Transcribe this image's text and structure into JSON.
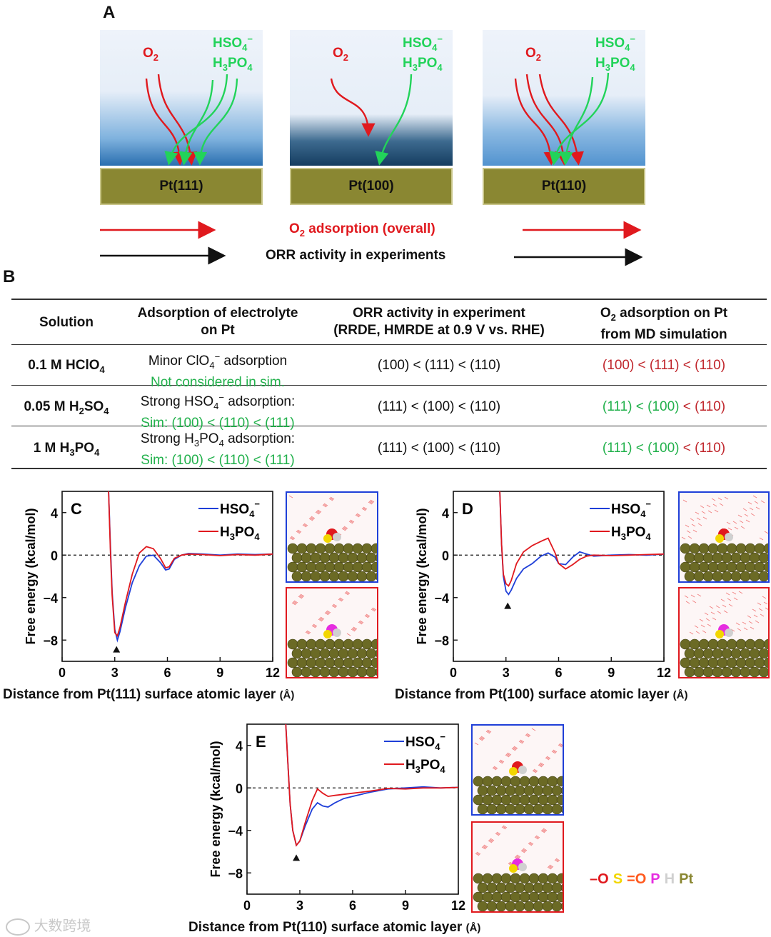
{
  "panelA": {
    "letter": "A",
    "boxes": [
      {
        "surface": "Pt(111)",
        "o2": "O",
        "o2_sub": "2",
        "hso4": "HSO",
        "hso4_sub": "4",
        "hso4_sup": "−",
        "h3po4_a": "H",
        "h3po4_sub1": "3",
        "h3po4_b": "PO",
        "h3po4_sub2": "4"
      },
      {
        "surface": "Pt(100)",
        "o2": "O",
        "o2_sub": "2",
        "hso4": "HSO",
        "hso4_sub": "4",
        "hso4_sup": "−",
        "h3po4_a": "H",
        "h3po4_sub1": "3",
        "h3po4_b": "PO",
        "h3po4_sub2": "4"
      },
      {
        "surface": "Pt(110)",
        "o2": "O",
        "o2_sub": "2",
        "hso4": "HSO",
        "hso4_sub": "4",
        "hso4_sup": "−",
        "h3po4_a": "H",
        "h3po4_sub1": "3",
        "h3po4_b": "PO",
        "h3po4_sub2": "4"
      }
    ],
    "o2_adsorption_label_a": "O",
    "o2_adsorption_label_sub": "2",
    "o2_adsorption_label_b": " adsorption (overall)",
    "orr_label": "ORR activity in experiments",
    "colors": {
      "o2": "#e0191e",
      "electrolyte": "#22d35a",
      "pt": "#8a8732"
    }
  },
  "panelB": {
    "letter": "B",
    "headers": {
      "solution": "Solution",
      "adsorption_l1": "Adsorption of electrolyte",
      "adsorption_l2": "on Pt",
      "orr_l1": "ORR activity in experiment",
      "orr_l2": "(RRDE, HMRDE at 0.9 V vs. RHE)",
      "o2_l1a": "O",
      "o2_l1sub": "2",
      "o2_l1b": " adsorption on Pt",
      "o2_l2": "from MD simulation"
    },
    "rows": [
      {
        "sol_a": "0.1 M HClO",
        "sol_sub": "4",
        "sol_b": "",
        "ads_l1a": "Minor ClO",
        "ads_l1sub": "4",
        "ads_l1sup": "−",
        "ads_l1b": " adsorption",
        "ads_l2": "Not considered in sim.",
        "orr": "(100) < (111) < (110)",
        "o2_a": "(100) < (111) < (110)",
        "o2_b": ""
      },
      {
        "sol_a": "0.05 M H",
        "sol_sub": "2",
        "sol_b": "SO",
        "sol_sub2": "4",
        "ads_l1a": "Strong HSO",
        "ads_l1sub": "4",
        "ads_l1sup": "−",
        "ads_l1b": " adsorption:",
        "ads_l2": "Sim: (100) < (110) < (111)",
        "orr": "(111) < (100) < (110)",
        "o2_a": "(111) < (100)",
        "o2_b": " < (110)"
      },
      {
        "sol_a": "1 M H",
        "sol_sub": "3",
        "sol_b": "PO",
        "sol_sub2": "4",
        "ads_l1a": "Strong H",
        "ads_l1sub": "3",
        "ads_l1sup": "",
        "ads_l1b": "PO",
        "ads_l1sub2": "4",
        "ads_l1c": " adsorption:",
        "ads_l2": "Sim: (100) < (110) < (111)",
        "orr": "(111) < (100) < (110)",
        "o2_a": "(111) < (100)",
        "o2_b": " < (110)"
      }
    ]
  },
  "charts": {
    "ylabel": "Free energy (kcal/mol)",
    "legend_hso4": "HSO",
    "legend_hso4_sub": "4",
    "legend_hso4_sup": "−",
    "legend_h3po4_a": "H",
    "legend_h3po4_sub1": "3",
    "legend_h3po4_b": "PO",
    "legend_h3po4_sub2": "4",
    "colors": {
      "hso4": "#1f3fd8",
      "h3po4": "#e0191e"
    }
  },
  "chart_data": [
    {
      "type": "line",
      "panel": "C",
      "xlabel_a": "Distance from Pt(111) surface atomic layer ",
      "xlabel_b": "(Å)",
      "ylabel": "Free energy (kcal/mol)",
      "xlim": [
        0,
        12
      ],
      "ylim": [
        -10,
        6
      ],
      "xticks": [
        "0",
        "3",
        "6",
        "9",
        "12"
      ],
      "yticks": [
        "4",
        "0",
        "−4",
        "−8"
      ],
      "marker_x": 3.1,
      "series": [
        {
          "name": "HSO4−",
          "x": [
            2.65,
            2.75,
            2.85,
            3.0,
            3.15,
            3.3,
            3.6,
            4.0,
            4.4,
            4.8,
            5.2,
            5.6,
            5.9,
            6.1,
            6.4,
            6.8,
            7.2,
            8.0,
            9.0,
            10.0,
            11.0,
            12.0
          ],
          "y": [
            6,
            1,
            -3.5,
            -7.0,
            -8.0,
            -7.2,
            -5.0,
            -2.6,
            -1.0,
            -0.1,
            0.0,
            -0.7,
            -1.4,
            -1.3,
            -0.4,
            0.0,
            0.15,
            0.1,
            0.0,
            0.1,
            0.05,
            0.1
          ]
        },
        {
          "name": "H3PO4",
          "x": [
            2.65,
            2.75,
            2.85,
            3.0,
            3.15,
            3.3,
            3.6,
            4.0,
            4.4,
            4.8,
            5.2,
            5.6,
            5.9,
            6.1,
            6.4,
            6.8,
            7.2,
            8.0,
            9.0,
            10.0,
            11.0,
            12.0
          ],
          "y": [
            6,
            0.5,
            -3.8,
            -7.3,
            -7.6,
            -6.8,
            -4.5,
            -1.8,
            0.2,
            0.8,
            0.6,
            -0.3,
            -1.2,
            -1.1,
            -0.3,
            0.0,
            0.1,
            0.05,
            -0.05,
            0.05,
            0.0,
            0.1
          ]
        }
      ]
    },
    {
      "type": "line",
      "panel": "D",
      "xlabel_a": "Distance from Pt(100) surface atomic layer ",
      "xlabel_b": "(Å)",
      "ylabel": "Free energy (kcal/mol)",
      "xlim": [
        0,
        12
      ],
      "ylim": [
        -10,
        6
      ],
      "xticks": [
        "0",
        "3",
        "6",
        "9",
        "12"
      ],
      "yticks": [
        "4",
        "0",
        "−4",
        "−8"
      ],
      "marker_x": 3.1,
      "series": [
        {
          "name": "HSO4−",
          "x": [
            2.65,
            2.75,
            2.85,
            3.0,
            3.15,
            3.3,
            3.6,
            4.0,
            4.5,
            5.0,
            5.4,
            5.8,
            6.0,
            6.4,
            6.8,
            7.2,
            7.6,
            8.0,
            9.0,
            10.0,
            11.0,
            12.0
          ],
          "y": [
            6,
            1,
            -2.0,
            -3.4,
            -3.7,
            -3.3,
            -2.2,
            -1.3,
            -0.8,
            -0.1,
            0.2,
            -0.2,
            -0.8,
            -0.9,
            -0.2,
            0.3,
            0.1,
            -0.1,
            0.0,
            0.05,
            0.0,
            0.1
          ]
        },
        {
          "name": "H3PO4",
          "x": [
            2.65,
            2.75,
            2.85,
            3.0,
            3.15,
            3.3,
            3.6,
            4.0,
            4.5,
            5.0,
            5.4,
            5.8,
            6.0,
            6.4,
            6.8,
            7.2,
            7.6,
            8.0,
            9.0,
            10.0,
            11.0,
            12.0
          ],
          "y": [
            6,
            1,
            -1.8,
            -2.7,
            -2.9,
            -2.4,
            -0.8,
            0.3,
            0.9,
            1.3,
            1.6,
            0.2,
            -0.8,
            -1.3,
            -0.9,
            -0.4,
            -0.1,
            0.0,
            -0.05,
            0.0,
            0.05,
            0.1
          ]
        }
      ]
    },
    {
      "type": "line",
      "panel": "E",
      "xlabel_a": "Distance from Pt(110) surface atomic layer ",
      "xlabel_b": "(Å)",
      "ylabel": "Free energy (kcal/mol)",
      "xlim": [
        0,
        12
      ],
      "ylim": [
        -10,
        6
      ],
      "xticks": [
        "0",
        "3",
        "6",
        "9",
        "12"
      ],
      "yticks": [
        "4",
        "0",
        "−4",
        "−8"
      ],
      "marker_x": 2.8,
      "series": [
        {
          "name": "HSO4−",
          "x": [
            2.2,
            2.3,
            2.45,
            2.6,
            2.8,
            3.0,
            3.3,
            3.7,
            4.0,
            4.3,
            4.6,
            5.0,
            5.5,
            6.0,
            7.0,
            8.0,
            9.0,
            10.0,
            11.0,
            12.0
          ],
          "y": [
            6,
            3,
            -1.5,
            -4.0,
            -5.4,
            -5.0,
            -3.6,
            -2.0,
            -1.4,
            -1.7,
            -1.8,
            -1.4,
            -1.0,
            -0.8,
            -0.4,
            -0.1,
            0.0,
            0.1,
            0.0,
            0.05
          ]
        },
        {
          "name": "H3PO4",
          "x": [
            2.2,
            2.3,
            2.45,
            2.6,
            2.8,
            3.0,
            3.3,
            3.7,
            4.0,
            4.3,
            4.6,
            5.0,
            5.5,
            6.0,
            7.0,
            8.0,
            9.0,
            10.0,
            11.0,
            12.0
          ],
          "y": [
            6,
            3,
            -1.5,
            -4.0,
            -5.4,
            -5.0,
            -3.3,
            -1.2,
            -0.1,
            -0.5,
            -0.8,
            -0.7,
            -0.6,
            -0.5,
            -0.3,
            -0.05,
            -0.1,
            0.0,
            0.0,
            0.05
          ]
        }
      ]
    }
  ],
  "element_legend": [
    {
      "symbol": "–O",
      "color": "#e0191e"
    },
    {
      "symbol": "S",
      "color": "#f2d600"
    },
    {
      "symbol": "=O",
      "color": "#ff5a1f"
    },
    {
      "symbol": "P",
      "color": "#e62de0"
    },
    {
      "symbol": "H",
      "color": "#d0d0d0"
    },
    {
      "symbol": "Pt",
      "color": "#8a8732"
    }
  ],
  "watermark": "大数跨境"
}
